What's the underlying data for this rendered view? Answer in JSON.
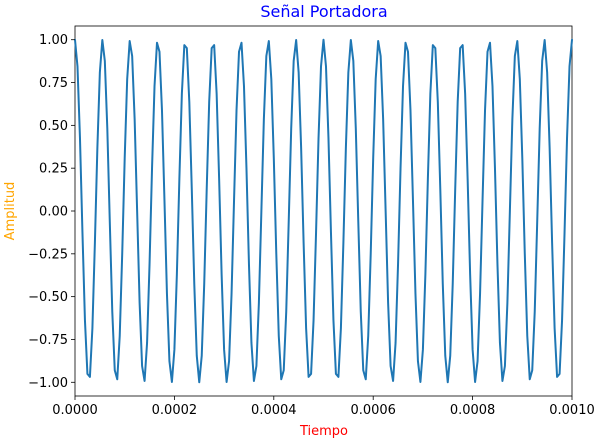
{
  "chart_data": {
    "type": "line",
    "title": "Señal Portadora",
    "xlabel": "Tiempo",
    "ylabel": "Amplitud",
    "xlim": [
      0,
      0.001
    ],
    "ylim": [
      -1.08,
      1.08
    ],
    "x_ticks": [
      "0.0000",
      "0.0002",
      "0.0004",
      "0.0006",
      "0.0008",
      "0.0010"
    ],
    "x_tick_values": [
      0,
      0.0002,
      0.0004,
      0.0006,
      0.0008,
      0.001
    ],
    "y_ticks": [
      "−1.00",
      "−0.75",
      "−0.50",
      "−0.25",
      "0.00",
      "0.25",
      "0.50",
      "0.75",
      "1.00"
    ],
    "y_tick_values": [
      -1,
      -0.75,
      -0.5,
      -0.25,
      0,
      0.25,
      0.5,
      0.75,
      1
    ],
    "grid": false,
    "series": [
      {
        "function": "cosine",
        "amplitude": 1,
        "frequency_hz": 18000,
        "x_start": 0,
        "x_end": 0.001,
        "sample_count": 201,
        "color": "#1f77b4"
      }
    ],
    "colors": {
      "title": "#0000ff",
      "xlabel": "#ff0000",
      "ylabel": "#ffa500"
    }
  }
}
